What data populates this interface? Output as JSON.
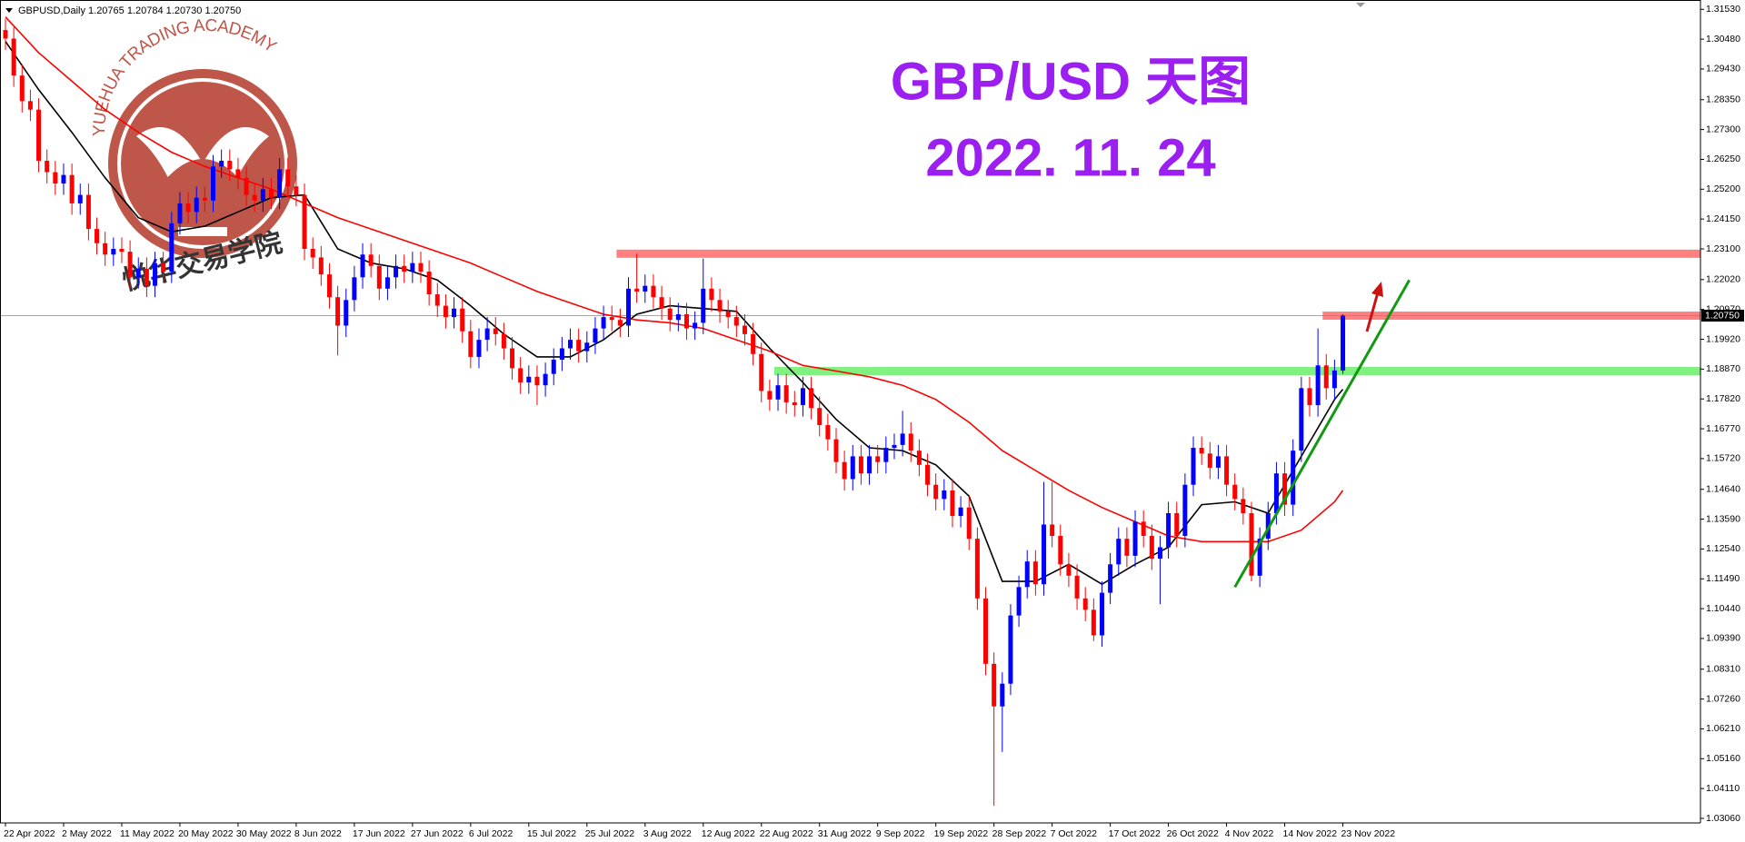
{
  "chart_data": {
    "type": "candlestick",
    "title": "GBP/USD 天图",
    "subtitle": "2022. 11. 24",
    "header": "GBPUSD,Daily  1.20765 1.20784 1.20730 1.20750",
    "logo_text": "YUEHUA TRADING ACADEMY",
    "logo_name": "悦华交易学院",
    "up_color": "#0000ff",
    "down_color": "#ff0000",
    "categories": [
      "22 Apr 2022",
      null,
      null,
      null,
      null,
      null,
      null,
      "2 May 2022",
      null,
      null,
      null,
      null,
      null,
      null,
      "11 May 2022",
      null,
      null,
      null,
      null,
      null,
      null,
      "20 May 2022",
      null,
      null,
      null,
      null,
      null,
      null,
      "30 May 2022",
      null,
      null,
      null,
      null,
      null,
      null,
      "8 Jun 2022",
      null,
      null,
      null,
      null,
      null,
      null,
      "17 Jun 2022",
      null,
      null,
      null,
      null,
      null,
      null,
      "27 Jun 2022",
      null,
      null,
      null,
      null,
      null,
      null,
      "6 Jul 2022",
      null,
      null,
      null,
      null,
      null,
      null,
      "15 Jul 2022",
      null,
      null,
      null,
      null,
      null,
      null,
      "25 Jul 2022",
      null,
      null,
      null,
      null,
      null,
      null,
      "3 Aug 2022",
      null,
      null,
      null,
      null,
      null,
      null,
      "12 Aug 2022",
      null,
      null,
      null,
      null,
      null,
      null,
      "22 Aug 2022",
      null,
      null,
      null,
      null,
      null,
      null,
      "31 Aug 2022",
      null,
      null,
      null,
      null,
      null,
      null,
      "9 Sep 2022",
      null,
      null,
      null,
      null,
      null,
      null,
      "19 Sep 2022",
      null,
      null,
      null,
      null,
      null,
      null,
      "28 Sep 2022",
      null,
      null,
      null,
      null,
      null,
      null,
      "7 Oct 2022",
      null,
      null,
      null,
      null,
      null,
      null,
      "17 Oct 2022",
      null,
      null,
      null,
      null,
      null,
      null,
      "26 Oct 2022",
      null,
      null,
      null,
      null,
      null,
      null,
      "4 Nov 2022",
      null,
      null,
      null,
      null,
      null,
      null,
      "14 Nov 2022",
      null,
      null,
      null,
      null,
      null,
      null,
      "23 Nov 2022"
    ],
    "open": [
      1.308,
      1.305,
      1.292,
      1.283,
      1.28,
      1.262,
      1.258,
      1.254,
      1.257,
      1.247,
      1.25,
      1.238,
      1.233,
      1.229,
      1.231,
      1.23,
      1.221,
      1.224,
      1.218,
      1.226,
      1.223,
      1.24,
      1.247,
      1.244,
      1.249,
      1.248,
      1.26,
      1.262,
      1.259,
      1.256,
      1.25,
      1.248,
      1.252,
      1.249,
      1.259,
      1.253,
      1.25,
      1.231,
      1.228,
      1.222,
      1.214,
      1.204,
      1.213,
      1.221,
      1.229,
      1.225,
      1.217,
      1.221,
      1.225,
      1.223,
      1.226,
      1.223,
      1.215,
      1.211,
      1.207,
      1.21,
      1.202,
      1.193,
      1.199,
      1.203,
      1.201,
      1.196,
      1.189,
      1.184,
      1.186,
      1.183,
      1.187,
      1.192,
      1.196,
      1.199,
      1.195,
      1.198,
      1.203,
      1.207,
      1.206,
      1.204,
      1.217,
      1.216,
      1.218,
      1.214,
      1.21,
      1.206,
      1.208,
      1.203,
      1.205,
      1.217,
      1.213,
      1.209,
      1.207,
      1.204,
      1.201,
      1.194,
      1.181,
      1.178,
      1.183,
      1.177,
      1.176,
      1.182,
      1.175,
      1.169,
      1.164,
      1.156,
      1.15,
      1.158,
      1.152,
      1.158,
      1.156,
      1.161,
      1.162,
      1.166,
      1.16,
      1.155,
      1.148,
      1.143,
      1.146,
      1.137,
      1.14,
      1.129,
      1.108,
      1.085,
      1.07,
      1.078,
      1.102,
      1.112,
      1.121,
      1.113,
      1.134,
      1.13,
      1.12,
      1.116,
      1.108,
      1.104,
      1.095,
      1.11,
      1.12,
      1.129,
      1.123,
      1.135,
      1.13,
      1.122,
      1.126,
      1.138,
      1.13,
      1.148,
      1.161,
      1.159,
      1.154,
      1.158,
      1.148,
      1.143,
      1.138,
      1.116,
      1.129,
      1.138,
      1.152,
      1.141,
      1.16,
      1.182,
      1.176,
      1.19,
      1.182,
      1.1882
    ],
    "high": [
      1.312,
      1.309,
      1.296,
      1.287,
      1.284,
      1.266,
      1.262,
      1.261,
      1.261,
      1.254,
      1.254,
      1.242,
      1.237,
      1.235,
      1.235,
      1.234,
      1.228,
      1.228,
      1.23,
      1.23,
      1.244,
      1.251,
      1.251,
      1.253,
      1.253,
      1.264,
      1.266,
      1.266,
      1.263,
      1.26,
      1.254,
      1.256,
      1.256,
      1.263,
      1.263,
      1.257,
      1.254,
      1.235,
      1.232,
      1.226,
      1.218,
      1.217,
      1.225,
      1.233,
      1.233,
      1.229,
      1.225,
      1.229,
      1.229,
      1.23,
      1.23,
      1.227,
      1.219,
      1.215,
      1.214,
      1.214,
      1.206,
      1.203,
      1.207,
      1.207,
      1.205,
      1.2,
      1.193,
      1.19,
      1.19,
      1.191,
      1.196,
      1.2,
      1.203,
      1.203,
      1.202,
      1.207,
      1.211,
      1.211,
      1.21,
      1.221,
      1.2293,
      1.222,
      1.222,
      1.218,
      1.214,
      1.212,
      1.212,
      1.209,
      1.2276,
      1.221,
      1.217,
      1.213,
      1.211,
      1.208,
      1.205,
      1.198,
      1.185,
      1.187,
      1.187,
      1.181,
      1.186,
      1.186,
      1.179,
      1.173,
      1.168,
      1.16,
      1.162,
      1.162,
      1.162,
      1.162,
      1.165,
      1.166,
      1.174,
      1.17,
      1.164,
      1.159,
      1.152,
      1.15,
      1.15,
      1.144,
      1.144,
      1.133,
      1.112,
      1.089,
      1.082,
      1.106,
      1.116,
      1.125,
      1.125,
      1.149,
      1.149,
      1.134,
      1.124,
      1.12,
      1.112,
      1.108,
      1.114,
      1.124,
      1.133,
      1.133,
      1.139,
      1.139,
      1.134,
      1.13,
      1.142,
      1.142,
      1.152,
      1.165,
      1.165,
      1.163,
      1.162,
      1.162,
      1.152,
      1.147,
      1.142,
      1.133,
      1.142,
      1.156,
      1.156,
      1.164,
      1.186,
      1.186,
      1.203,
      1.194,
      1.192,
      1.208
    ],
    "low": [
      1.301,
      1.288,
      1.279,
      1.276,
      1.258,
      1.254,
      1.25,
      1.25,
      1.243,
      1.243,
      1.234,
      1.229,
      1.225,
      1.225,
      1.226,
      1.217,
      1.217,
      1.214,
      1.214,
      1.219,
      1.219,
      1.236,
      1.24,
      1.24,
      1.244,
      1.244,
      1.256,
      1.255,
      1.252,
      1.246,
      1.244,
      1.244,
      1.245,
      1.245,
      1.249,
      1.246,
      1.227,
      1.224,
      1.218,
      1.21,
      1.1935,
      1.2,
      1.209,
      1.217,
      1.221,
      1.213,
      1.213,
      1.217,
      1.219,
      1.219,
      1.219,
      1.211,
      1.207,
      1.203,
      1.203,
      1.198,
      1.189,
      1.189,
      1.195,
      1.197,
      1.192,
      1.185,
      1.18,
      1.18,
      1.176,
      1.179,
      1.183,
      1.188,
      1.192,
      1.191,
      1.191,
      1.194,
      1.199,
      1.202,
      1.2,
      1.2,
      1.212,
      1.212,
      1.21,
      1.206,
      1.202,
      1.202,
      1.199,
      1.199,
      1.201,
      1.209,
      1.205,
      1.203,
      1.2,
      1.197,
      1.19,
      1.177,
      1.174,
      1.174,
      1.173,
      1.172,
      1.172,
      1.171,
      1.165,
      1.16,
      1.152,
      1.146,
      1.146,
      1.148,
      1.148,
      1.152,
      1.152,
      1.157,
      1.158,
      1.156,
      1.151,
      1.144,
      1.139,
      1.139,
      1.133,
      1.133,
      1.125,
      1.104,
      1.081,
      1.035,
      1.054,
      1.074,
      1.098,
      1.108,
      1.109,
      1.109,
      1.126,
      1.116,
      1.112,
      1.104,
      1.1,
      1.093,
      1.091,
      1.106,
      1.116,
      1.119,
      1.119,
      1.126,
      1.118,
      1.106,
      1.122,
      1.126,
      1.126,
      1.144,
      1.155,
      1.15,
      1.15,
      1.144,
      1.139,
      1.134,
      1.114,
      1.112,
      1.125,
      1.134,
      1.137,
      1.137,
      1.156,
      1.172,
      1.172,
      1.178,
      1.178,
      1.187
    ],
    "close": [
      1.305,
      1.292,
      1.283,
      1.28,
      1.262,
      1.258,
      1.254,
      1.257,
      1.247,
      1.25,
      1.238,
      1.233,
      1.229,
      1.231,
      1.23,
      1.221,
      1.224,
      1.218,
      1.226,
      1.223,
      1.24,
      1.247,
      1.244,
      1.249,
      1.248,
      1.26,
      1.262,
      1.259,
      1.256,
      1.25,
      1.248,
      1.252,
      1.249,
      1.259,
      1.253,
      1.25,
      1.231,
      1.228,
      1.222,
      1.214,
      1.204,
      1.213,
      1.221,
      1.229,
      1.225,
      1.217,
      1.221,
      1.225,
      1.223,
      1.226,
      1.223,
      1.215,
      1.211,
      1.207,
      1.21,
      1.202,
      1.193,
      1.199,
      1.203,
      1.201,
      1.196,
      1.189,
      1.184,
      1.186,
      1.183,
      1.187,
      1.192,
      1.196,
      1.199,
      1.195,
      1.198,
      1.203,
      1.207,
      1.206,
      1.204,
      1.217,
      1.216,
      1.218,
      1.214,
      1.21,
      1.206,
      1.208,
      1.203,
      1.205,
      1.217,
      1.213,
      1.209,
      1.207,
      1.204,
      1.201,
      1.194,
      1.181,
      1.178,
      1.183,
      1.177,
      1.176,
      1.182,
      1.175,
      1.169,
      1.164,
      1.156,
      1.15,
      1.158,
      1.152,
      1.158,
      1.156,
      1.161,
      1.162,
      1.166,
      1.16,
      1.155,
      1.148,
      1.143,
      1.146,
      1.137,
      1.14,
      1.129,
      1.108,
      1.085,
      1.07,
      1.078,
      1.102,
      1.112,
      1.121,
      1.113,
      1.134,
      1.13,
      1.12,
      1.116,
      1.108,
      1.104,
      1.095,
      1.11,
      1.12,
      1.129,
      1.123,
      1.135,
      1.13,
      1.122,
      1.126,
      1.138,
      1.13,
      1.148,
      1.161,
      1.159,
      1.154,
      1.158,
      1.148,
      1.143,
      1.138,
      1.116,
      1.129,
      1.138,
      1.152,
      1.141,
      1.16,
      1.182,
      1.176,
      1.19,
      1.182,
      1.1882,
      1.2075
    ],
    "lines": [
      {
        "color": "#000000",
        "x": [
          0,
          4,
          8,
          12,
          16,
          20,
          24,
          28,
          32,
          36,
          40,
          44,
          48,
          52,
          56,
          60,
          64,
          68,
          72,
          76,
          80,
          84,
          88,
          92,
          96,
          100,
          104,
          108,
          112,
          116,
          120,
          124,
          128,
          132,
          136,
          140,
          144,
          148,
          152,
          156,
          160,
          161
        ],
        "values": [
          1.304,
          1.287,
          1.272,
          1.256,
          1.242,
          1.237,
          1.239,
          1.244,
          1.249,
          1.25,
          1.231,
          1.226,
          1.224,
          1.22,
          1.211,
          1.201,
          1.193,
          1.193,
          1.199,
          1.208,
          1.211,
          1.21,
          1.209,
          1.196,
          1.184,
          1.171,
          1.161,
          1.16,
          1.155,
          1.144,
          1.114,
          1.114,
          1.12,
          1.113,
          1.12,
          1.126,
          1.141,
          1.142,
          1.138,
          1.158,
          1.178,
          1.1816
        ]
      },
      {
        "color": "#ff0000",
        "x": [
          0,
          4,
          8,
          12,
          16,
          20,
          24,
          28,
          32,
          36,
          40,
          44,
          48,
          52,
          56,
          60,
          64,
          68,
          72,
          76,
          80,
          84,
          88,
          92,
          96,
          100,
          104,
          108,
          112,
          116,
          120,
          124,
          128,
          132,
          136,
          140,
          144,
          148,
          152,
          156,
          160,
          161
        ],
        "values": [
          1.3126,
          1.3,
          1.29,
          1.28,
          1.272,
          1.265,
          1.26,
          1.256,
          1.252,
          1.247,
          1.242,
          1.238,
          1.234,
          1.23,
          1.226,
          1.221,
          1.216,
          1.212,
          1.208,
          1.206,
          1.205,
          1.203,
          1.199,
          1.195,
          1.19,
          1.188,
          1.186,
          1.183,
          1.178,
          1.17,
          1.16,
          1.153,
          1.146,
          1.14,
          1.135,
          1.13,
          1.128,
          1.128,
          1.128,
          1.132,
          1.142,
          1.146
        ]
      }
    ],
    "levels": [
      {
        "value": 1.2293,
        "from": 74,
        "color": "#ff8080"
      },
      {
        "value": 1.2075,
        "from": 159,
        "color": "#ff8080"
      },
      {
        "value": 1.188,
        "from": 93,
        "color": "#80f080"
      }
    ],
    "trendline": {
      "color": "#119911",
      "x": [
        148,
        169
      ],
      "values": [
        1.112,
        1.22
      ]
    },
    "current_price": {
      "value": 1.2075,
      "label": "1.20750"
    },
    "ylim": [
      1.029,
      1.3173
    ],
    "yticks": [
      {
        "value": 1.3153,
        "label": "1.31530"
      },
      {
        "value": 1.3048,
        "label": "1.30480"
      },
      {
        "value": 1.2943,
        "label": "1.29430"
      },
      {
        "value": 1.2835,
        "label": "1.28350"
      },
      {
        "value": 1.273,
        "label": "1.27300"
      },
      {
        "value": 1.2625,
        "label": "1.26250"
      },
      {
        "value": 1.252,
        "label": "1.25200"
      },
      {
        "value": 1.2415,
        "label": "1.24150"
      },
      {
        "value": 1.231,
        "label": "1.23100"
      },
      {
        "value": 1.2202,
        "label": "1.22020"
      },
      {
        "value": 1.2097,
        "label": "1.20970"
      },
      {
        "value": 1.1992,
        "label": "1.19920"
      },
      {
        "value": 1.1887,
        "label": "1.18870"
      },
      {
        "value": 1.1782,
        "label": "1.17820"
      },
      {
        "value": 1.1677,
        "label": "1.16770"
      },
      {
        "value": 1.1572,
        "label": "1.15720"
      },
      {
        "value": 1.1464,
        "label": "1.14640"
      },
      {
        "value": 1.1359,
        "label": "1.13590"
      },
      {
        "value": 1.1254,
        "label": "1.12540"
      },
      {
        "value": 1.1149,
        "label": "1.11490"
      },
      {
        "value": 1.1044,
        "label": "1.10440"
      },
      {
        "value": 1.0939,
        "label": "1.09390"
      },
      {
        "value": 1.0831,
        "label": "1.08310"
      },
      {
        "value": 1.0726,
        "label": "1.07260"
      },
      {
        "value": 1.0621,
        "label": "1.06210"
      },
      {
        "value": 1.0516,
        "label": "1.05160"
      },
      {
        "value": 1.0411,
        "label": "1.04110"
      },
      {
        "value": 1.0306,
        "label": "1.03060"
      }
    ]
  }
}
